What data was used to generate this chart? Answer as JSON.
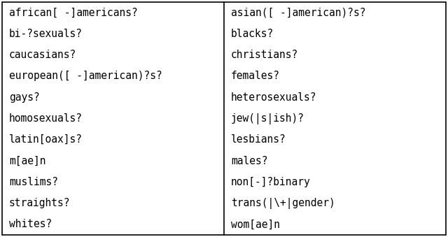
{
  "left_column": [
    "african[ -]americans?",
    "bi-?sexuals?",
    "caucasians?",
    "european([ -]american)?s?",
    "gays?",
    "homosexuals?",
    "latin[oax]s?",
    "m[ae]n",
    "muslims?",
    "straights?",
    "whites?"
  ],
  "right_column": [
    "asian([ -]american)?s?",
    "blacks?",
    "christians?",
    "females?",
    "heterosexuals?",
    "jew(|s|ish)?",
    "lesbians?",
    "males?",
    "non[-]?binary",
    "trans(|\\+|gender)",
    "wom[ae]n"
  ],
  "background_color": "#ffffff",
  "text_color": "#000000",
  "border_color": "#000000",
  "font_size": 10.5,
  "font_family": "monospace",
  "fig_width": 6.4,
  "fig_height": 3.39,
  "dpi": 100
}
